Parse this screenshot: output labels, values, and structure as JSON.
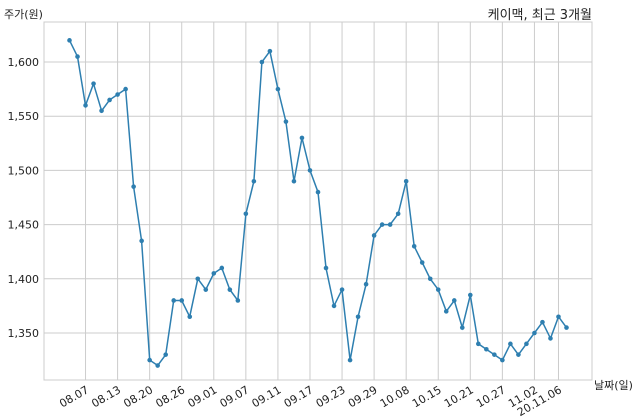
{
  "chart_data": {
    "type": "line",
    "title": "케이맥, 최근 3개월",
    "ylabel": "주가(원)",
    "xlabel": "날짜(일)",
    "ylim": [
      1310,
      1635
    ],
    "yticks": [
      1350,
      1400,
      1450,
      1500,
      1550,
      1600
    ],
    "ytick_labels": [
      "1,350",
      "1,400",
      "1,450",
      "1,500",
      "1,550",
      "1,600"
    ],
    "xtick_labels": [
      "08.07",
      "08.13",
      "08.20",
      "08.26",
      "09.01",
      "09.07",
      "09.11",
      "09.17",
      "09.23",
      "09.29",
      "10.08",
      "10.15",
      "10.21",
      "10.27",
      "11.02",
      "20.11.06"
    ],
    "xtick_index": [
      2,
      6,
      10,
      14,
      18,
      22,
      26,
      30,
      34,
      38,
      42,
      46,
      50,
      54,
      58,
      61
    ],
    "grid": true,
    "line_color": "#2e7fb0",
    "series": [
      {
        "values": [
          1620,
          1605,
          1560,
          1580,
          1555,
          1565,
          1570,
          1575,
          1485,
          1435,
          1325,
          1320,
          1330,
          1380,
          1380,
          1365,
          1400,
          1390,
          1405,
          1410,
          1390,
          1380,
          1460,
          1490,
          1600,
          1610,
          1575,
          1545,
          1490,
          1530,
          1500,
          1480,
          1410,
          1375,
          1390,
          1325,
          1365,
          1395,
          1440,
          1450,
          1450,
          1460,
          1490,
          1430,
          1415,
          1400,
          1390,
          1370,
          1380,
          1355,
          1385,
          1340,
          1335,
          1330,
          1325,
          1340,
          1330,
          1340,
          1350,
          1360,
          1345,
          1365,
          1355
        ]
      }
    ]
  }
}
